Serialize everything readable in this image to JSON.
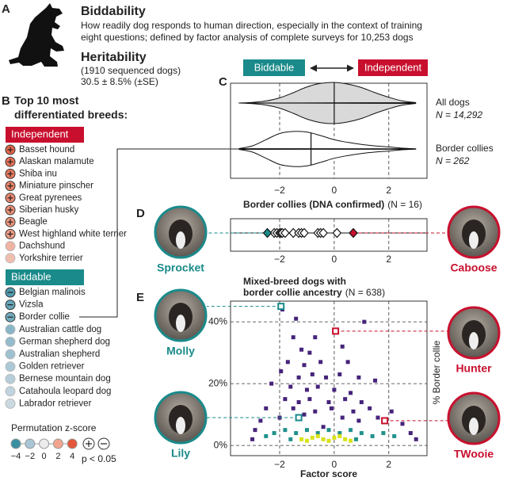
{
  "panel_labels": [
    "A",
    "B",
    "C",
    "D",
    "E"
  ],
  "header": {
    "title": "Biddability",
    "description": [
      "How readily dog responds to human direction, especially in the context of training",
      "eight questions; defined by factor analysis of complete surveys for 10,253 dogs"
    ],
    "heritability_title": "Heritability",
    "heritability_sample": "(1910 sequenced dogs)",
    "heritability_value": "30.5 ± 8.5% (±SE)"
  },
  "breeds": {
    "title": [
      "Top 10 most",
      "differentiated breeds:"
    ],
    "groups": [
      {
        "name": "Independent",
        "color": "#c8102e",
        "items": [
          {
            "name": "Basset hound",
            "z": 3.6,
            "significant": true
          },
          {
            "name": "Alaskan malamute",
            "z": 3.3,
            "significant": true
          },
          {
            "name": "Shiba inu",
            "z": 3.1,
            "significant": true
          },
          {
            "name": "Miniature pinscher",
            "z": 2.9,
            "significant": true
          },
          {
            "name": "Great pyrenees",
            "z": 2.7,
            "significant": true
          },
          {
            "name": "Siberian husky",
            "z": 2.5,
            "significant": true
          },
          {
            "name": "Beagle",
            "z": 2.4,
            "significant": true
          },
          {
            "name": "West highland white terrier",
            "z": 2.2,
            "significant": true
          },
          {
            "name": "Dachshund",
            "z": 1.6,
            "significant": false
          },
          {
            "name": "Yorkshire terrier",
            "z": 1.3,
            "significant": false
          }
        ]
      },
      {
        "name": "Biddable",
        "color": "#1a8a8a",
        "items": [
          {
            "name": "Belgian malinois",
            "z": -3.6,
            "significant": true
          },
          {
            "name": "Vizsla",
            "z": -3.2,
            "significant": true
          },
          {
            "name": "Border collie",
            "z": -3.0,
            "significant": true
          },
          {
            "name": "Australian cattle dog",
            "z": -2.6,
            "significant": false
          },
          {
            "name": "German shepherd dog",
            "z": -2.4,
            "significant": false
          },
          {
            "name": "Australian shepherd",
            "z": -2.2,
            "significant": false
          },
          {
            "name": "Golden retriever",
            "z": -1.9,
            "significant": false
          },
          {
            "name": "Bernese mountain dog",
            "z": -1.6,
            "significant": false
          },
          {
            "name": "Catahoula leopard dog",
            "z": -1.3,
            "significant": false
          },
          {
            "name": "Labrador retriever",
            "z": -1.0,
            "significant": false
          }
        ]
      }
    ]
  },
  "legend": {
    "title": "Permutation z-score",
    "ticks": [
      {
        "value": -4,
        "label": "−4"
      },
      {
        "value": -2,
        "label": "−2"
      },
      0,
      2,
      4
    ],
    "colors": [
      "#3b8fa3",
      "#a9c6d6",
      "#ececec",
      "#f2a58e",
      "#e4573a"
    ],
    "significance_label": "p < 0.05"
  },
  "chart_data": [
    {
      "type": "violin",
      "axis_labels": {
        "left": "Biddable",
        "right": "Independent"
      },
      "groups": [
        {
          "name": "All dogs",
          "n_label": "N = 14,292",
          "color": "#d9d9d9",
          "median": 0,
          "x": [
            -3.5,
            -3,
            -2.5,
            -2,
            -1.5,
            -1,
            -0.5,
            0,
            0.5,
            1,
            1.5,
            2,
            2.5,
            3
          ],
          "density": [
            0,
            0.03,
            0.1,
            0.25,
            0.5,
            0.78,
            0.95,
            1,
            0.92,
            0.75,
            0.5,
            0.28,
            0.1,
            0.02
          ]
        },
        {
          "name": "Border collies",
          "n_label": "N = 262",
          "color": "#ffffff",
          "median": -0.85,
          "x": [
            -3.5,
            -3,
            -2.5,
            -2,
            -1.5,
            -1,
            -0.5,
            0,
            0.5,
            1,
            1.5,
            2,
            2.5,
            3
          ],
          "density": [
            0.02,
            0.15,
            0.45,
            0.75,
            0.85,
            0.82,
            0.65,
            0.45,
            0.32,
            0.22,
            0.15,
            0.1,
            0.04,
            0.01
          ]
        }
      ],
      "xlim": [
        -3.8,
        3.4
      ],
      "xticks": [
        {
          "value": -2,
          "label": "−2"
        },
        0,
        2
      ],
      "grid": true
    },
    {
      "type": "strip",
      "title": "Border collies (DNA confirmed)",
      "n_label": "(N = 16)",
      "values": [
        -2.2,
        -2.1,
        -2.0,
        -1.95,
        -1.9,
        -1.8,
        -1.5,
        -1.3,
        -1.2,
        -1.1,
        -0.6,
        -0.5,
        -0.4,
        0.1
      ],
      "dogs": [
        {
          "name": "Sprocket",
          "color": "#1a8a8a",
          "value": -2.45
        },
        {
          "name": "Caboose",
          "color": "#c8102e",
          "value": 0.7
        }
      ],
      "xlim": [
        -3.8,
        3.4
      ],
      "xticks": [
        {
          "value": -2,
          "label": "−2"
        },
        0,
        2
      ],
      "grid": true
    },
    {
      "type": "scatter",
      "title": [
        "Mixed-breed dogs with",
        "border collie ancestry"
      ],
      "n_label": "(N = 638)",
      "xlabel": "Factor score",
      "ylabel": "% Border collie",
      "series": [
        {
          "color": "#46237a",
          "x": [
            -1.9,
            -1.4,
            -1.5,
            -0.7,
            1.1,
            -0.9,
            -1.2,
            0.3,
            -1.7,
            -1.1,
            -0.5,
            0.5,
            -1.95,
            -1.3,
            -0.8,
            -0.3,
            0.2,
            0.9,
            1.5,
            -2.3,
            -1.6,
            -1.0,
            -0.6,
            0,
            0.6,
            -1.8,
            -1.3,
            -0.9,
            -0.2,
            0.4,
            1.0,
            -2.5,
            -1.5,
            -0.7,
            -0.1,
            0.7,
            1.3,
            2.1,
            -2.7,
            -2.0,
            -1.1,
            0.3,
            0.9,
            1.6,
            2.5,
            -2.9,
            2.8,
            -3.0,
            3.0,
            -0.4
          ],
          "y": [
            44,
            41,
            35,
            35,
            40,
            30,
            31,
            32,
            27,
            26,
            27,
            27,
            24,
            22,
            23,
            22,
            23,
            22,
            21,
            20,
            19,
            18,
            19,
            18,
            17,
            15,
            14,
            15,
            14,
            15,
            14,
            12,
            12,
            11,
            12,
            11,
            12,
            11,
            8,
            9,
            10,
            9,
            8,
            9,
            7,
            5,
            4,
            2,
            2,
            6
          ]
        },
        {
          "color": "#21918c",
          "x": [
            -2.2,
            -1.8,
            -1.4,
            -1.0,
            -0.6,
            -0.2,
            0.2,
            0.6,
            1.0,
            1.4,
            1.8,
            -2.5,
            2.2,
            -1.6,
            0.8
          ],
          "y": [
            4,
            5,
            4,
            5,
            4,
            5,
            4,
            5,
            4,
            3,
            4,
            3,
            3,
            2,
            2
          ]
        },
        {
          "color": "#d8e219",
          "x": [
            -1.2,
            -0.8,
            -0.4,
            0,
            0.4,
            -1.0,
            -0.2,
            0.2,
            0.6,
            -0.6
          ],
          "y": [
            2,
            2.5,
            2,
            2.5,
            2,
            1.5,
            1.5,
            3,
            1.5,
            3
          ]
        }
      ],
      "dogs": [
        {
          "name": "Molly",
          "color": "#1a8a8a",
          "x": -1.95,
          "y": 45
        },
        {
          "name": "Hunter",
          "color": "#c8102e",
          "x": 0.05,
          "y": 37
        },
        {
          "name": "Lily",
          "color": "#1a8a8a",
          "x": -1.3,
          "y": 9
        },
        {
          "name": "TWooie",
          "color": "#c8102e",
          "x": 1.85,
          "y": 8
        }
      ],
      "xlim": [
        -3.8,
        3.4
      ],
      "xticks": [
        {
          "value": -2,
          "label": "−2"
        },
        0,
        2
      ],
      "ylim": [
        -3.3,
        46.7
      ],
      "yticks": [
        {
          "value": 0,
          "label": "0%"
        },
        {
          "value": 20,
          "label": "20%"
        },
        {
          "value": 40,
          "label": "40%"
        }
      ],
      "grid": true
    }
  ]
}
